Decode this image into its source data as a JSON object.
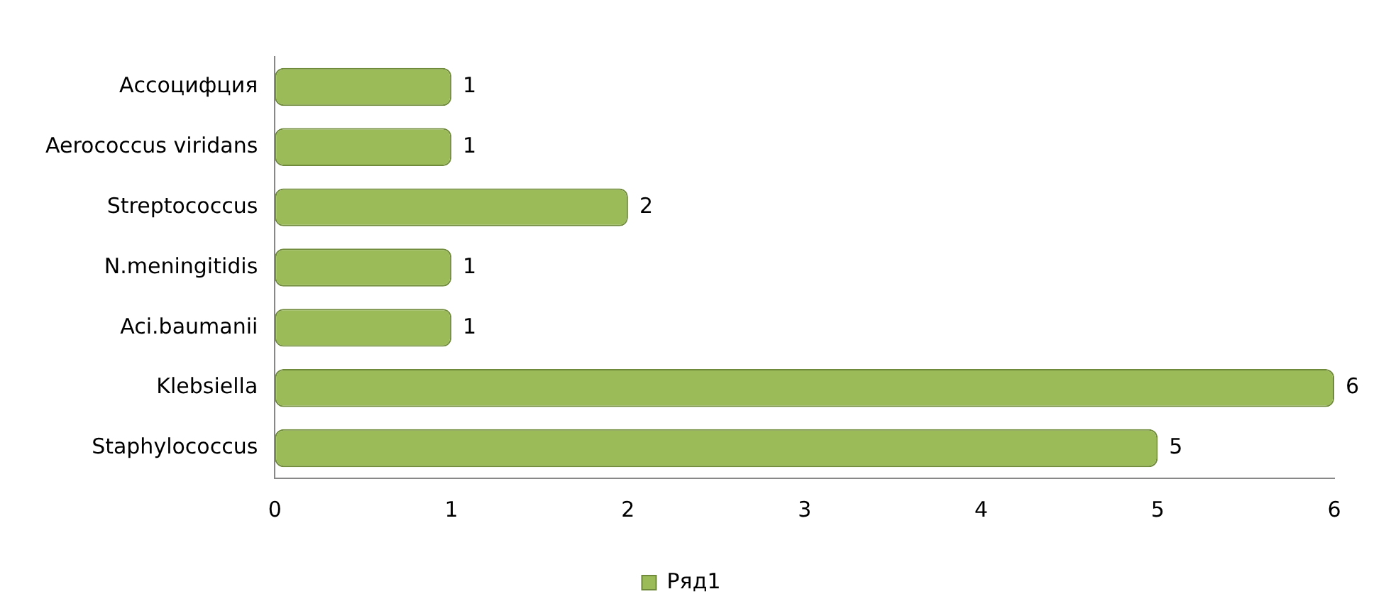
{
  "chart_data": {
    "type": "bar",
    "orientation": "horizontal",
    "categories": [
      "Ассоцифция",
      "Aerococcus viridans",
      "Streptococcus",
      "N.meningitidis",
      "Aci.baumanii",
      "Klebsiella",
      "Staphylococcus"
    ],
    "series": [
      {
        "name": "Ряд1",
        "color": "#9bbb59",
        "values": [
          1,
          1,
          2,
          1,
          1,
          6,
          5
        ]
      }
    ],
    "xlim": [
      0,
      6
    ],
    "xticks": [
      0,
      1,
      2,
      3,
      4,
      5,
      6
    ],
    "grid": false,
    "legend": "bottom",
    "data_labels": true
  }
}
